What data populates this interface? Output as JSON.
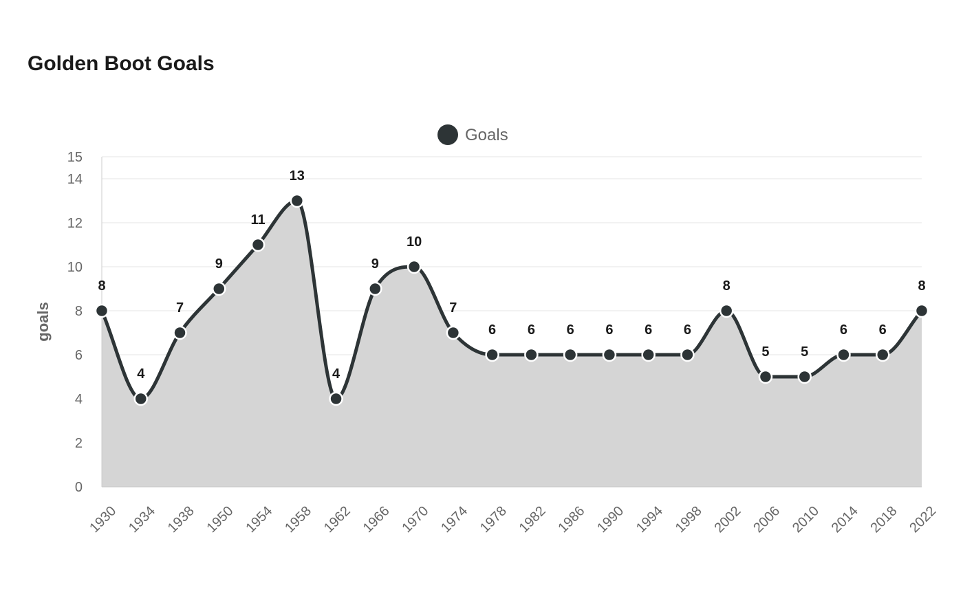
{
  "chart_data": {
    "type": "area",
    "title": "Golden Boot Goals",
    "ylabel": "goals",
    "xlabel": "",
    "categories": [
      "1930",
      "1934",
      "1938",
      "1950",
      "1954",
      "1958",
      "1962",
      "1966",
      "1970",
      "1974",
      "1978",
      "1982",
      "1986",
      "1990",
      "1994",
      "1998",
      "2002",
      "2006",
      "2010",
      "2014",
      "2018",
      "2022"
    ],
    "series": [
      {
        "name": "Goals",
        "values": [
          8,
          4,
          7,
          9,
          11,
          13,
          4,
          9,
          10,
          7,
          6,
          6,
          6,
          6,
          6,
          6,
          8,
          5,
          5,
          6,
          6,
          8
        ]
      }
    ],
    "ylim": [
      0,
      15
    ],
    "yticks": [
      0,
      2,
      4,
      6,
      8,
      10,
      12,
      14,
      15
    ],
    "grid": true,
    "legend": "top-center",
    "smooth": true,
    "data_labels": true,
    "colors": {
      "line": "#2d3436",
      "fill": "#d5d5d5",
      "grid": "#e6e6e6",
      "axis": "#cccccc",
      "tick_text": "#666666",
      "label_text": "#1a1a1a"
    }
  }
}
